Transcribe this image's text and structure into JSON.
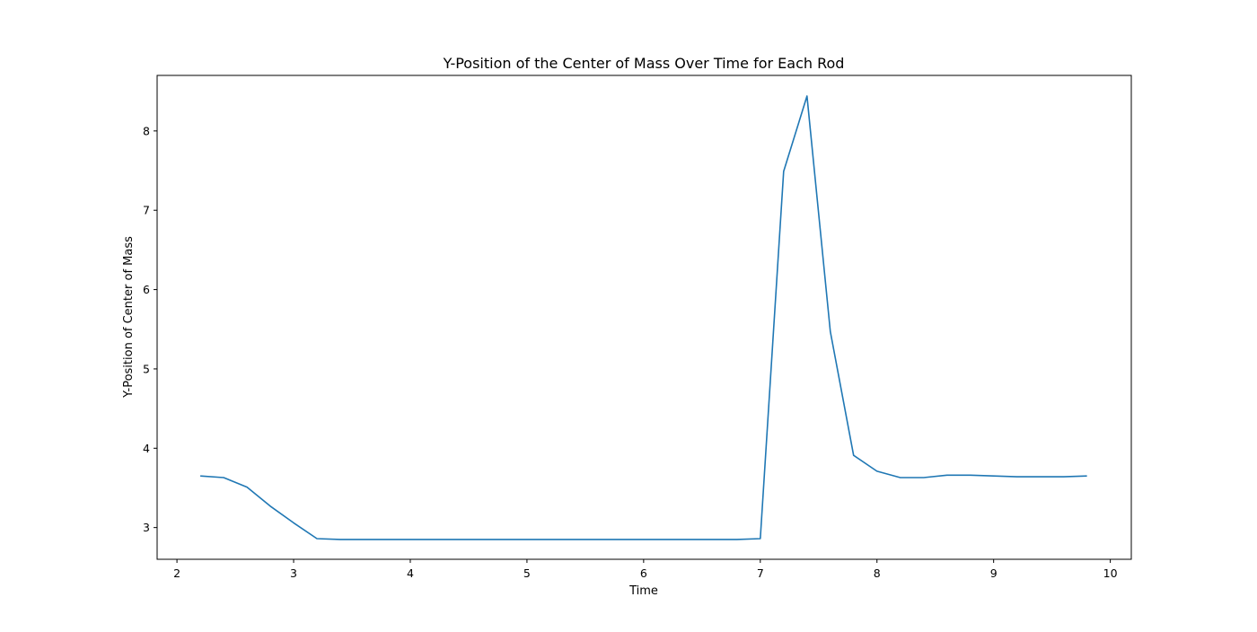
{
  "chart_data": {
    "type": "line",
    "title": "Y-Position of the Center of Mass Over Time for Each Rod",
    "xlabel": "Time",
    "ylabel": "Y-Position of Center of Mass",
    "xlim": [
      1.83,
      10.18
    ],
    "ylim": [
      2.6,
      8.7
    ],
    "xticks": [
      2,
      3,
      4,
      5,
      6,
      7,
      8,
      9,
      10
    ],
    "yticks": [
      3,
      4,
      5,
      6,
      7,
      8
    ],
    "grid": false,
    "legend": "none",
    "series": [
      {
        "color": "#1f77b4",
        "x": [
          2.2,
          2.4,
          2.6,
          2.8,
          3.0,
          3.2,
          3.4,
          3.6,
          3.8,
          4.0,
          4.2,
          4.4,
          4.6,
          4.8,
          5.0,
          5.2,
          5.4,
          5.6,
          5.8,
          6.0,
          6.2,
          6.4,
          6.6,
          6.8,
          7.0,
          7.2,
          7.4,
          7.6,
          7.8,
          8.0,
          8.2,
          8.4,
          8.6,
          8.8,
          9.0,
          9.2,
          9.4,
          9.6,
          9.8
        ],
        "y": [
          3.65,
          3.63,
          3.51,
          3.27,
          3.06,
          2.86,
          2.85,
          2.85,
          2.85,
          2.85,
          2.85,
          2.85,
          2.85,
          2.85,
          2.85,
          2.85,
          2.85,
          2.85,
          2.85,
          2.85,
          2.85,
          2.85,
          2.85,
          2.85,
          2.86,
          7.49,
          8.44,
          5.47,
          3.91,
          3.71,
          3.63,
          3.63,
          3.66,
          3.66,
          3.65,
          3.64,
          3.64,
          3.64,
          3.65
        ]
      }
    ]
  }
}
